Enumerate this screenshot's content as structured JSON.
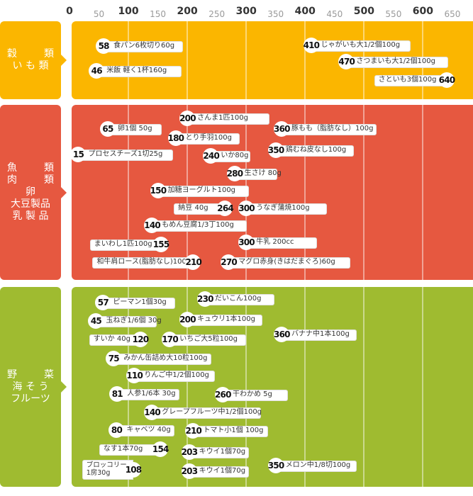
{
  "chart_data": {
    "type": "range-chart",
    "unit": "kcal",
    "x_axis": {
      "range": [
        0,
        650
      ],
      "major_ticks": [
        0,
        100,
        200,
        300,
        400,
        500,
        600
      ],
      "minor_ticks": [
        50,
        150,
        250,
        350,
        450,
        550,
        650
      ]
    },
    "colors": {
      "grain": "#fbb600",
      "protein": "#e65840",
      "veg": "#9fbb30"
    },
    "groups": [
      {
        "id": "grain",
        "lines": [
          "穀　類",
          "い も 類"
        ],
        "items": [
          {
            "value": 58,
            "label": "食パン6枚切り60g"
          },
          {
            "value": 46,
            "label": "米飯 軽く1杯160g"
          },
          {
            "value": 410,
            "label": "じゃがいも大1/2個100g"
          },
          {
            "value": 470,
            "label": "さつまいも大1/2個100g"
          },
          {
            "value": 640,
            "label": "さといも3個100g",
            "align": "left"
          }
        ]
      },
      {
        "id": "protein",
        "lines": [
          "魚　類",
          "肉　類",
          "卵",
          "大豆製品",
          "乳 製 品"
        ],
        "items": [
          {
            "value": 200,
            "label": "さんま1匹100g"
          },
          {
            "value": 65,
            "label": "卵1個 50g"
          },
          {
            "value": 180,
            "label": "とり手羽100g"
          },
          {
            "value": 360,
            "label": "豚もも（脂肪なし）100g"
          },
          {
            "value": 15,
            "label": "プロセスチーズ1切25g"
          },
          {
            "value": 240,
            "label": "いか80g"
          },
          {
            "value": 350,
            "label": "鶏むね皮なし100g"
          },
          {
            "value": 280,
            "label": "生さけ 80g"
          },
          {
            "value": 150,
            "label": "加糖ヨーグルト100g"
          },
          {
            "value": 264,
            "label": "納豆 40g",
            "align": "left"
          },
          {
            "value": 300,
            "label": "うなぎ蒲焼100g"
          },
          {
            "value": 140,
            "label": "もめん豆腐1/3丁100g"
          },
          {
            "value": 155,
            "label": "まいわし1匹100g",
            "align": "left"
          },
          {
            "value": 300,
            "label": "牛乳 200cc"
          },
          {
            "value": 210,
            "label": "和牛肩ロース(脂肪なし)100g",
            "align": "left"
          },
          {
            "value": 270,
            "label": "マグロ赤身(きはだまぐろ)60g"
          }
        ]
      },
      {
        "id": "veg",
        "lines": [
          "野　菜",
          "海 そ う",
          "フルーツ"
        ],
        "items": [
          {
            "value": 57,
            "label": "ピーマン1個30g"
          },
          {
            "value": 230,
            "label": "だいこん100g"
          },
          {
            "value": 45,
            "label": "玉ねぎ1/6個 30g"
          },
          {
            "value": 200,
            "label": "キュウリ1本100g"
          },
          {
            "value": 360,
            "label": "バナナ中1本100g"
          },
          {
            "value": 120,
            "label": "すいか 40g",
            "align": "left"
          },
          {
            "value": 170,
            "label": "いちご大5粒100g"
          },
          {
            "value": 75,
            "label": "みかん缶詰め大10粒100g"
          },
          {
            "value": 110,
            "label": "りんご中1/2個100g"
          },
          {
            "value": 81,
            "label": "人参1/6本 30g"
          },
          {
            "value": 260,
            "label": "干わかめ 5g"
          },
          {
            "value": 140,
            "label": "グレープフルーツ中1/2個100g"
          },
          {
            "value": 80,
            "label": "キャベツ 40g"
          },
          {
            "value": 210,
            "label": "トマト小1個 100g"
          },
          {
            "value": 154,
            "label": "なす1本70g",
            "align": "left"
          },
          {
            "value": 203,
            "label": "キウイ1個70g"
          },
          {
            "value": 350,
            "label": "メロン中1/8切100g"
          },
          {
            "value": 108,
            "label": "ブロッコリー\n1房30g",
            "align": "left"
          },
          {
            "value": 203,
            "label": "キウイ1個70g"
          }
        ]
      }
    ]
  }
}
